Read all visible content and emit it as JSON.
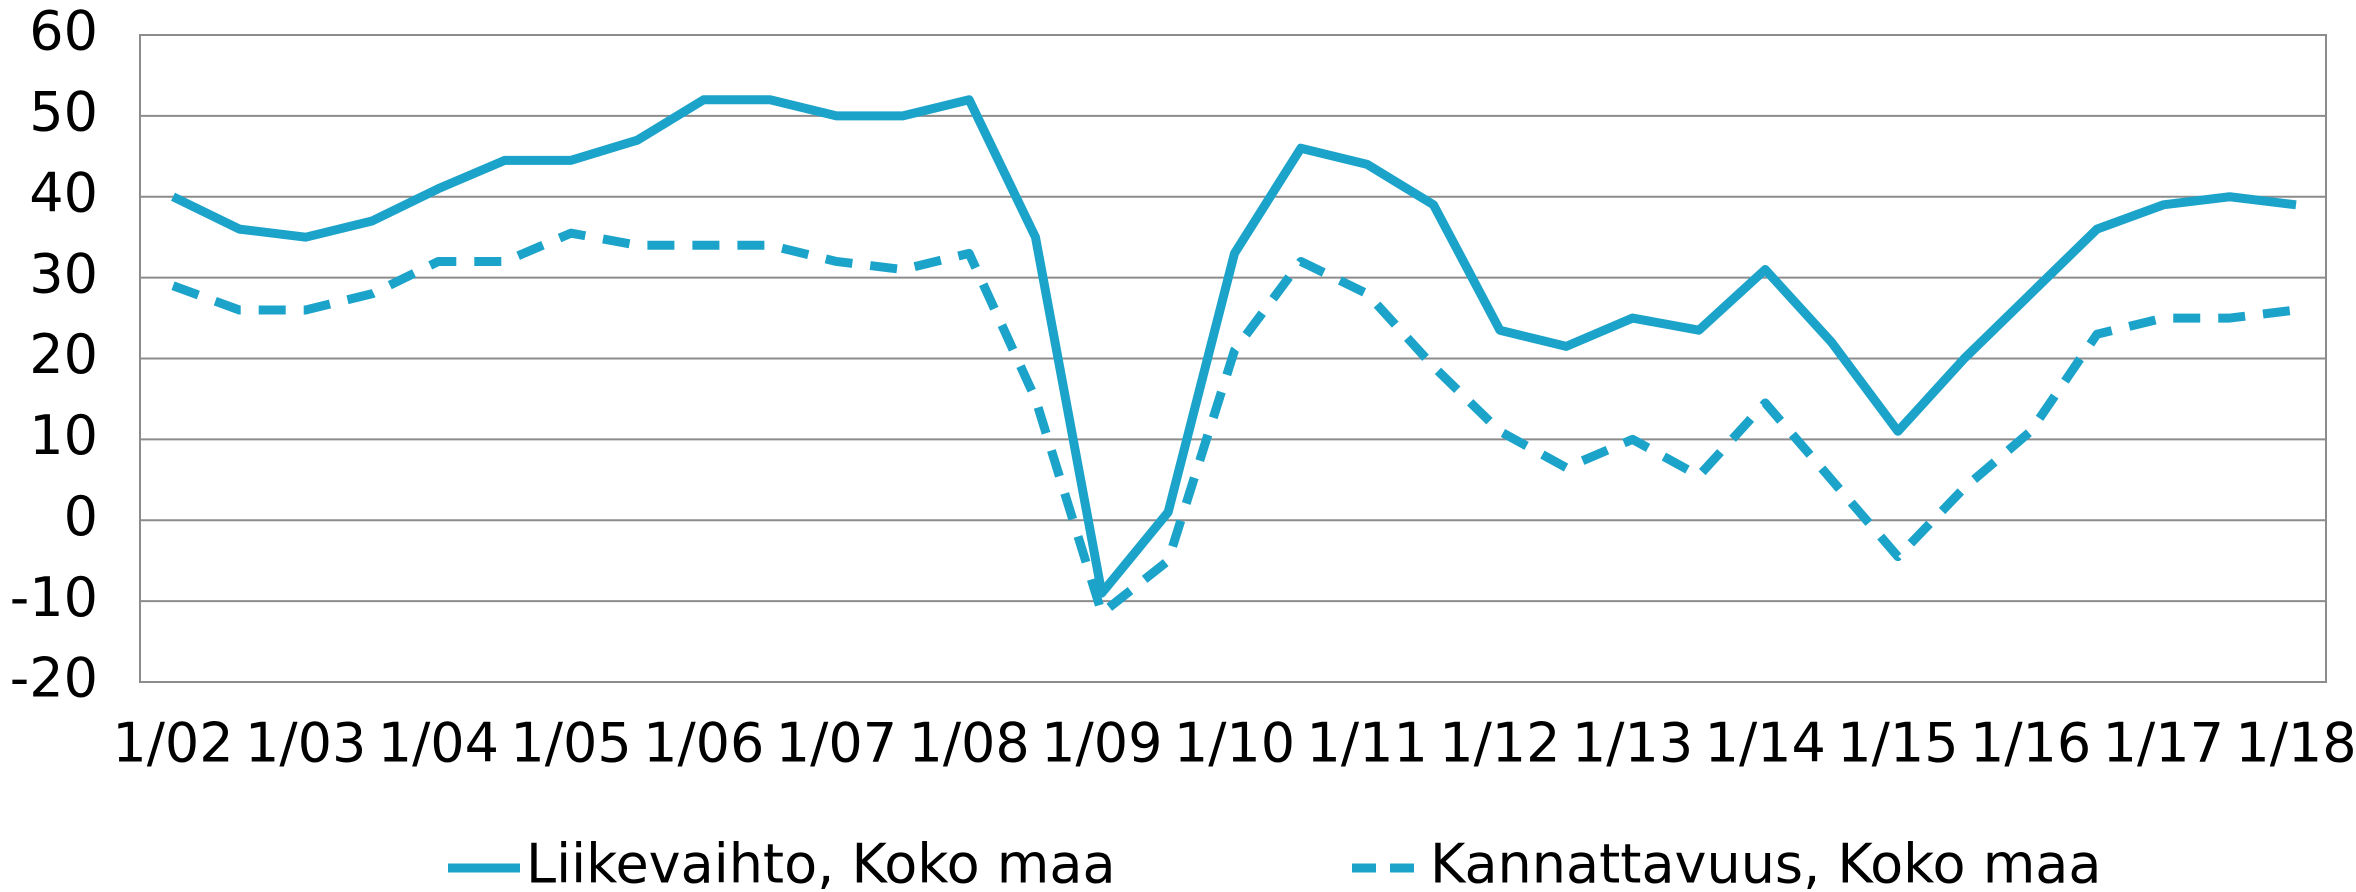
{
  "chart_data": {
    "type": "line",
    "categories": [
      "1/02",
      null,
      "1/03",
      null,
      "1/04",
      null,
      "1/05",
      null,
      "1/06",
      null,
      "1/07",
      null,
      "1/08",
      null,
      "1/09",
      null,
      "1/10",
      null,
      "1/11",
      null,
      "1/12",
      null,
      "1/13",
      null,
      "1/14",
      null,
      "1/15",
      null,
      "1/16",
      null,
      "1/17",
      null,
      "1/18"
    ],
    "series": [
      {
        "name": "Liikevaihto, Koko maa",
        "color": "#1ba3c9",
        "dash": "solid",
        "values": [
          40,
          36,
          35,
          37,
          41,
          44.5,
          44.5,
          47,
          52,
          52,
          50,
          50,
          52,
          35,
          -9,
          1,
          33,
          46,
          44,
          39,
          23.5,
          21.5,
          25,
          23.5,
          31,
          22,
          11,
          20,
          28,
          36,
          39,
          40,
          39
        ]
      },
      {
        "name": "Kannattavuus, Koko maa",
        "color": "#1ba3c9",
        "dash": "dashed",
        "values": [
          29,
          26,
          26,
          28,
          32,
          32,
          35.5,
          34,
          34,
          34,
          32,
          31,
          33,
          15,
          -11.5,
          -5,
          21,
          32,
          28,
          19,
          11,
          6.5,
          10,
          5.5,
          14.5,
          5,
          -4.5,
          4,
          11,
          23,
          25,
          25,
          26
        ]
      }
    ],
    "ylim": [
      -20,
      60
    ],
    "yticks": [
      -20,
      -10,
      0,
      10,
      20,
      30,
      40,
      50,
      60
    ],
    "grid": true,
    "legend": "bottom"
  }
}
